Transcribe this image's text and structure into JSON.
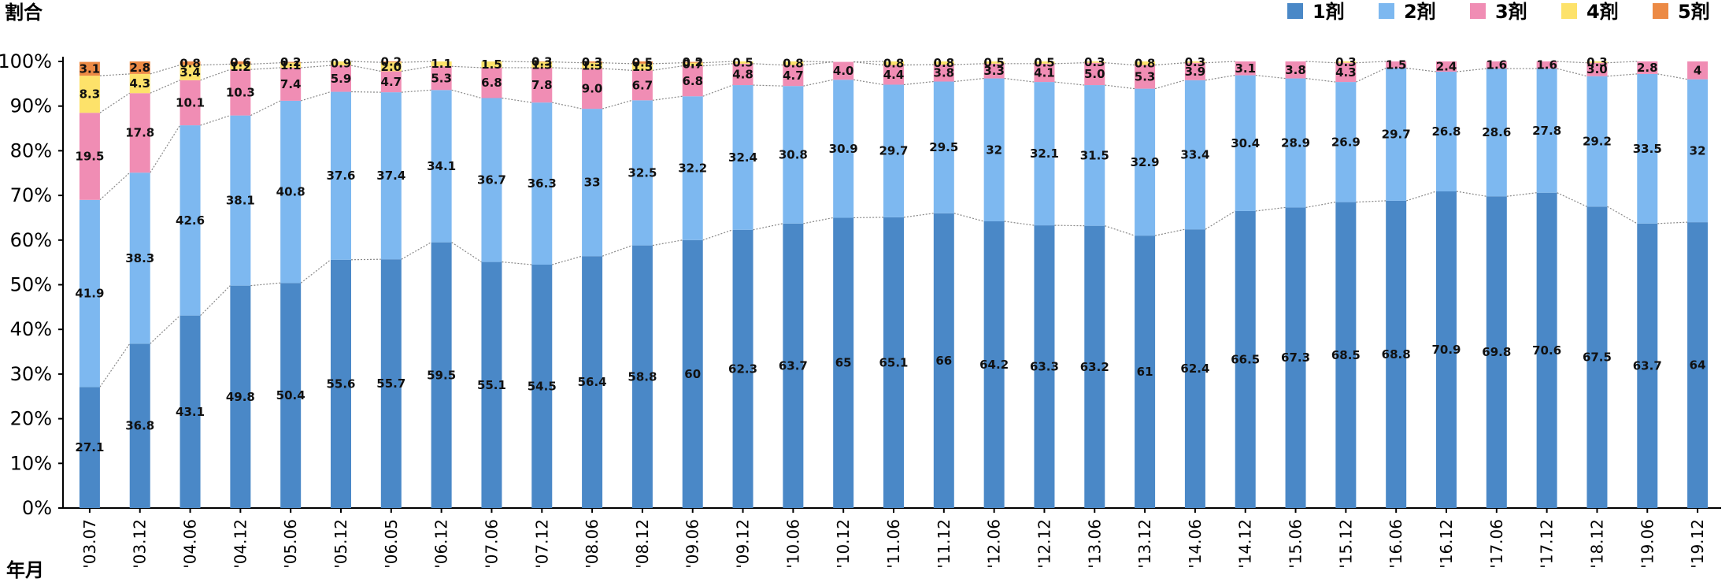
{
  "chart_data": {
    "type": "bar",
    "stacked": true,
    "ylabel": "割合",
    "xlabel": "年月",
    "ylim": [
      0,
      100
    ],
    "yticks": [
      "0%",
      "10%",
      "20%",
      "30%",
      "40%",
      "50%",
      "60%",
      "70%",
      "80%",
      "90%",
      "100%"
    ],
    "legend_position": "top-right",
    "categories": [
      "'03.07",
      "'03.12",
      "'04.06",
      "'04.12",
      "'05.06",
      "'05.12",
      "'06.05",
      "'06.12",
      "'07.06",
      "'07.12",
      "'08.06",
      "'08.12",
      "'09.06",
      "'09.12",
      "'10.06",
      "'10.12",
      "'11.06",
      "'11.12",
      "'12.06",
      "'12.12",
      "'13.06",
      "'13.12",
      "'14.06",
      "'14.12",
      "'15.06",
      "'15.12",
      "'16.06",
      "'16.12",
      "'17.06",
      "'17.12",
      "'18.12",
      "'19.06",
      "'19.12"
    ],
    "series": [
      {
        "name": "1剤",
        "color": "#4a88c7",
        "values": [
          27.1,
          36.8,
          43.1,
          49.8,
          50.4,
          55.6,
          55.7,
          59.5,
          55.1,
          54.5,
          56.4,
          58.8,
          60,
          62.3,
          63.7,
          65,
          65.1,
          66,
          64.2,
          63.3,
          63.2,
          61,
          62.4,
          66.5,
          67.3,
          68.5,
          68.8,
          70.9,
          69.8,
          70.6,
          67.5,
          63.7,
          64
        ],
        "labels": [
          "27.1",
          "36.8",
          "43.1",
          "49.8",
          "50.4",
          "55.6",
          "55.7",
          "59.5",
          "55.1",
          "54.5",
          "56.4",
          "58.8",
          "60",
          "62.3",
          "63.7",
          "65",
          "65.1",
          "66",
          "64.2",
          "63.3",
          "63.2",
          "61",
          "62.4",
          "66.5",
          "67.3",
          "68.5",
          "68.8",
          "70.9",
          "69.8",
          "70.6",
          "67.5",
          "63.7",
          "64"
        ]
      },
      {
        "name": "2剤",
        "color": "#7db8f0",
        "values": [
          41.9,
          38.3,
          42.6,
          38.1,
          40.8,
          37.6,
          37.4,
          34.1,
          36.7,
          36.3,
          33,
          32.5,
          32.2,
          32.4,
          30.8,
          30.9,
          29.7,
          29.5,
          32,
          32.1,
          31.5,
          32.9,
          33.4,
          30.4,
          28.9,
          26.9,
          29.7,
          26.8,
          28.6,
          27.8,
          29.2,
          33.5,
          32
        ],
        "labels": [
          "41.9",
          "38.3",
          "42.6",
          "38.1",
          "40.8",
          "37.6",
          "37.4",
          "34.1",
          "36.7",
          "36.3",
          "33",
          "32.5",
          "32.2",
          "32.4",
          "30.8",
          "30.9",
          "29.7",
          "29.5",
          "32",
          "32.1",
          "31.5",
          "32.9",
          "33.4",
          "30.4",
          "28.9",
          "26.9",
          "29.7",
          "26.8",
          "28.6",
          "27.8",
          "29.2",
          "33.5",
          "32"
        ]
      },
      {
        "name": "3剤",
        "color": "#f08db4",
        "values": [
          19.5,
          17.8,
          10.1,
          10.3,
          7.4,
          5.9,
          4.7,
          5.3,
          6.8,
          7.8,
          9.0,
          6.7,
          6.8,
          4.8,
          4.7,
          4.0,
          4.4,
          3.8,
          3.3,
          4.1,
          5.0,
          5.3,
          3.9,
          3.1,
          3.8,
          4.3,
          1.5,
          2.4,
          1.6,
          1.6,
          3.0,
          2.8,
          4
        ],
        "labels": [
          "19.5",
          "17.8",
          "10.1",
          "10.3",
          "7.4",
          "5.9",
          "4.7",
          "5.3",
          "6.8",
          "7.8",
          "9.0",
          "6.7",
          "6.8",
          "4.8",
          "4.7",
          "4.0",
          "4.4",
          "3.8",
          "3.3",
          "4.1",
          "5.0",
          "5.3",
          "3.9",
          "3.1",
          "3.8",
          "4.3",
          "1.5",
          "2.4",
          "1.6",
          "1.6",
          "3.0",
          "2.8",
          "4"
        ]
      },
      {
        "name": "4剤",
        "color": "#fde26a",
        "values": [
          8.3,
          4.3,
          3.4,
          1.2,
          1.1,
          0.9,
          2.0,
          1.1,
          1.5,
          1.3,
          1.3,
          1.5,
          0.7,
          0.5,
          0.8,
          0,
          0.8,
          0.8,
          0.5,
          0.5,
          0.3,
          0.8,
          0.3,
          0,
          0,
          0.3,
          0,
          0,
          0,
          0,
          0.3,
          0,
          0
        ],
        "labels": [
          "8.3",
          "4.3",
          "3.4",
          "1.2",
          "1.1",
          "0.9",
          "2.0",
          "1.1",
          "1.5",
          "1.3",
          "1.3",
          "1.5",
          "0.7",
          "0.5",
          "0.8",
          "",
          "0.8",
          "0.8",
          "0.5",
          "0.5",
          "0.3",
          "0.8",
          "0.3",
          "",
          "",
          "0.3",
          "",
          "",
          "",
          "",
          "0.3",
          "",
          ""
        ]
      },
      {
        "name": "5剤",
        "color": "#ec8a45",
        "values": [
          3.1,
          2.8,
          0.8,
          0.6,
          0.2,
          0,
          0.2,
          0,
          0,
          0.3,
          0.3,
          0.5,
          0.2,
          0,
          0,
          0,
          0,
          0,
          0,
          0,
          0,
          0,
          0,
          0,
          0,
          0,
          0,
          0,
          0,
          0,
          0,
          0,
          0
        ],
        "labels": [
          "3.1",
          "2.8",
          "0.8",
          "0.6",
          "0.2",
          "",
          "0.2",
          "",
          "",
          "0.3",
          "0.3",
          "0.5",
          "0.2",
          "",
          "",
          "",
          "",
          "",
          "",
          "",
          "",
          "",
          "",
          "",
          "",
          "",
          "",
          "",
          "",
          "",
          "",
          "",
          ""
        ]
      }
    ]
  }
}
